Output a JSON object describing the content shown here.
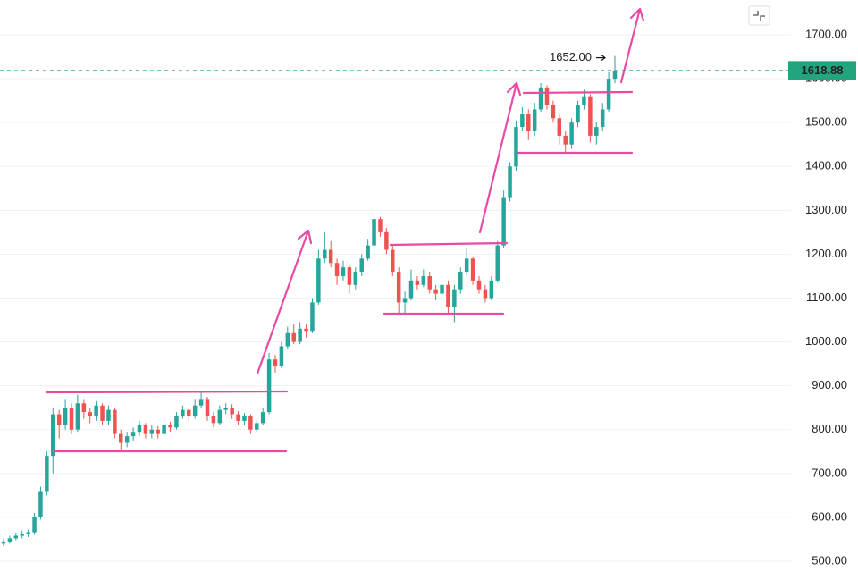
{
  "chart_data": {
    "type": "candlestick",
    "up_color": "#26a69a",
    "down_color": "#ef5350",
    "grid": true,
    "ylim": [
      475.5,
      1779.5
    ],
    "yticks": [
      {
        "value": 500,
        "label": "500.00"
      },
      {
        "value": 600,
        "label": "600.00"
      },
      {
        "value": 700,
        "label": "700.00"
      },
      {
        "value": 800,
        "label": "800.00"
      },
      {
        "value": 900,
        "label": "900.00"
      },
      {
        "value": 1000,
        "label": "1000.00"
      },
      {
        "value": 1100,
        "label": "1100.00"
      },
      {
        "value": 1200,
        "label": "1200.00"
      },
      {
        "value": 1300,
        "label": "1300.00"
      },
      {
        "value": 1400,
        "label": "1400.00"
      },
      {
        "value": 1500,
        "label": "1500.00"
      },
      {
        "value": 1600,
        "label": "1600.00"
      },
      {
        "value": 1700,
        "label": "1700.00"
      }
    ],
    "last_price": 1618.88,
    "last_price_color": "#22a57f",
    "high_marker": {
      "value": 1652,
      "label": "1652.00"
    },
    "series": [
      {
        "open": [
          540,
          545,
          552,
          558,
          562,
          566,
          600,
          660,
          740,
          835,
          810,
          850,
          800,
          860,
          840,
          830,
          855,
          820,
          845,
          790,
          770,
          785,
          795,
          810,
          790,
          800,
          790,
          810,
          805,
          830,
          845,
          830,
          855,
          870,
          830,
          815,
          845,
          850,
          835,
          820,
          830,
          800,
          815,
          840,
          960,
          945,
          990,
          1020,
          1000,
          1030,
          1025,
          1090,
          1190,
          1210,
          1180,
          1150,
          1170,
          1130,
          1160,
          1190,
          1220,
          1280,
          1250,
          1210,
          1160,
          1090,
          1100,
          1140,
          1130,
          1150,
          1120,
          1110,
          1130,
          1080,
          1120,
          1160,
          1190,
          1140,
          1120,
          1100,
          1140,
          1220,
          1330,
          1400,
          1490,
          1520,
          1480,
          1530,
          1580,
          1540,
          1510,
          1470,
          1450,
          1500,
          1540,
          1560,
          1470,
          1490,
          1530,
          1600
        ],
        "high": [
          552,
          558,
          565,
          570,
          572,
          610,
          670,
          750,
          850,
          845,
          870,
          860,
          880,
          870,
          850,
          865,
          860,
          855,
          850,
          800,
          795,
          805,
          820,
          815,
          810,
          808,
          820,
          818,
          840,
          855,
          850,
          870,
          885,
          875,
          840,
          855,
          860,
          858,
          842,
          838,
          835,
          822,
          850,
          975,
          970,
          1000,
          1035,
          1040,
          1045,
          1040,
          1100,
          1210,
          1250,
          1230,
          1190,
          1185,
          1175,
          1170,
          1200,
          1235,
          1295,
          1285,
          1260,
          1220,
          1170,
          1115,
          1165,
          1150,
          1165,
          1160,
          1130,
          1140,
          1140,
          1130,
          1170,
          1215,
          1195,
          1150,
          1130,
          1150,
          1230,
          1345,
          1410,
          1505,
          1535,
          1530,
          1545,
          1590,
          1585,
          1550,
          1520,
          1480,
          1510,
          1550,
          1575,
          1565,
          1500,
          1545,
          1615,
          1652
        ],
        "low": [
          535,
          540,
          548,
          552,
          555,
          560,
          595,
          650,
          700,
          780,
          800,
          790,
          795,
          825,
          815,
          820,
          810,
          810,
          780,
          755,
          760,
          775,
          785,
          780,
          780,
          780,
          785,
          795,
          800,
          825,
          820,
          825,
          850,
          820,
          805,
          810,
          835,
          825,
          810,
          810,
          790,
          795,
          810,
          835,
          930,
          940,
          985,
          995,
          995,
          1010,
          1020,
          1085,
          1180,
          1170,
          1130,
          1140,
          1110,
          1120,
          1150,
          1185,
          1215,
          1240,
          1200,
          1150,
          1060,
          1065,
          1095,
          1120,
          1125,
          1110,
          1095,
          1100,
          1065,
          1045,
          1110,
          1150,
          1130,
          1110,
          1090,
          1095,
          1135,
          1215,
          1320,
          1390,
          1480,
          1460,
          1470,
          1525,
          1530,
          1500,
          1450,
          1430,
          1440,
          1490,
          1530,
          1455,
          1450,
          1480,
          1525,
          1590
        ],
        "close": [
          545,
          552,
          558,
          562,
          566,
          600,
          660,
          740,
          835,
          810,
          850,
          800,
          860,
          840,
          830,
          855,
          820,
          845,
          790,
          770,
          785,
          795,
          810,
          790,
          800,
          790,
          810,
          805,
          830,
          845,
          830,
          855,
          870,
          830,
          815,
          845,
          850,
          835,
          820,
          830,
          800,
          815,
          840,
          960,
          945,
          990,
          1020,
          1000,
          1030,
          1025,
          1090,
          1190,
          1210,
          1180,
          1150,
          1170,
          1130,
          1160,
          1190,
          1220,
          1280,
          1250,
          1210,
          1160,
          1090,
          1100,
          1140,
          1130,
          1150,
          1120,
          1110,
          1130,
          1080,
          1120,
          1160,
          1190,
          1140,
          1120,
          1100,
          1140,
          1220,
          1330,
          1400,
          1490,
          1520,
          1480,
          1530,
          1580,
          1540,
          1510,
          1470,
          1450,
          1500,
          1540,
          1560,
          1470,
          1490,
          1530,
          1600,
          1618.88
        ]
      }
    ]
  }
}
